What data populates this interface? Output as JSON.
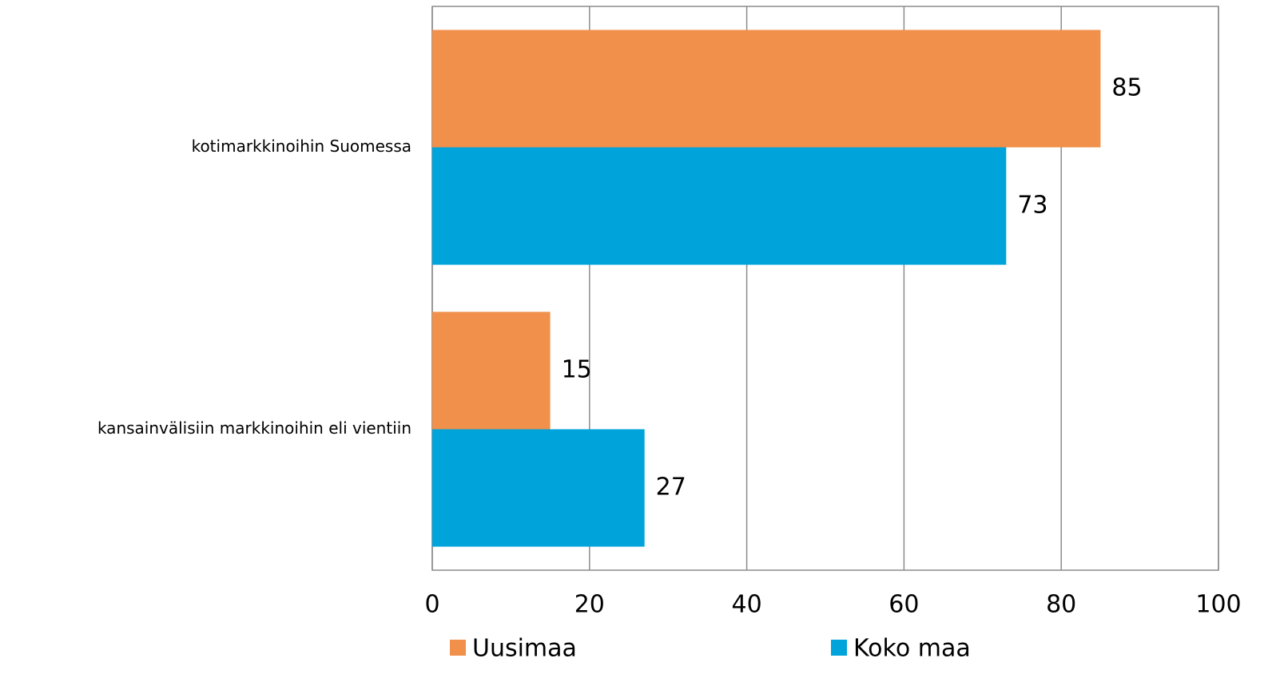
{
  "chart_data": {
    "type": "bar",
    "orientation": "horizontal",
    "categories": [
      "kotimarkkinoihin Suomessa",
      "kansainvälisiin markkinoihin eli vientiin"
    ],
    "series": [
      {
        "name": "Uusimaa",
        "color": "#f0904a",
        "values": [
          85,
          15
        ]
      },
      {
        "name": "Koko maa",
        "color": "#00a3da",
        "values": [
          73,
          27
        ]
      }
    ],
    "xlim": [
      0,
      100
    ],
    "xticks": [
      0,
      20,
      40,
      60,
      80,
      100
    ],
    "grid": true,
    "legend": "bottom",
    "data_labels": true
  }
}
